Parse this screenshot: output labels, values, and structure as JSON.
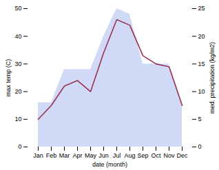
{
  "chart_data": {
    "type": "line",
    "categories": [
      "Jan",
      "Feb",
      "Mar",
      "Apr",
      "May",
      "Jun",
      "Jul",
      "Aug",
      "Sep",
      "Oct",
      "Nov",
      "Dec"
    ],
    "xlabel": "date (month)",
    "ylabel": "max temp (C)",
    "y2label": "med. precipitation (kg/m2)",
    "ylim": [
      0,
      50
    ],
    "yticks": [
      0,
      10,
      20,
      30,
      40,
      50
    ],
    "y2lim": [
      0,
      25
    ],
    "y2ticks": [
      0,
      5,
      10,
      15,
      20,
      25
    ],
    "grid": false,
    "series": [
      {
        "type": "area",
        "axis": "y2",
        "color": "#aabbee",
        "values": [
          8,
          8,
          14,
          14,
          14,
          20,
          25,
          24,
          15,
          15,
          15,
          8
        ]
      },
      {
        "type": "line",
        "color": "#993355",
        "values": [
          10,
          15,
          22,
          24,
          20,
          34,
          46,
          44,
          33,
          30,
          29,
          15
        ]
      }
    ]
  }
}
